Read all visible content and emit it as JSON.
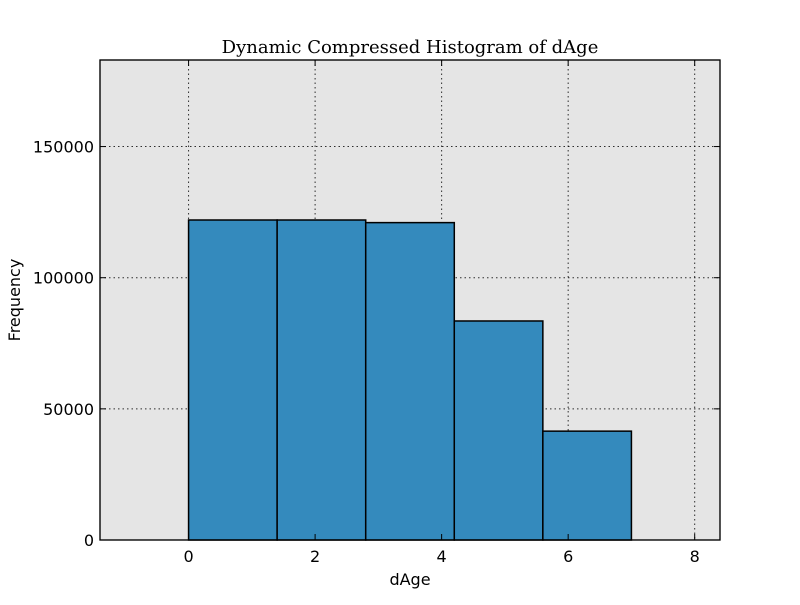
{
  "chart_data": {
    "type": "bar",
    "title": "Dynamic Compressed Histogram of dAge",
    "xlabel": "dAge",
    "ylabel": "Frequency",
    "xlim": [
      -1.4,
      8.4
    ],
    "ylim": [
      0,
      183000
    ],
    "x_ticks": [
      0,
      2,
      4,
      6,
      8
    ],
    "y_ticks": [
      0,
      50000,
      100000,
      150000
    ],
    "grid": true,
    "bins": [
      {
        "start": 0.0,
        "end": 1.4,
        "value": 122000
      },
      {
        "start": 1.4,
        "end": 2.8,
        "value": 122000
      },
      {
        "start": 2.8,
        "end": 4.2,
        "value": 121000
      },
      {
        "start": 4.2,
        "end": 5.6,
        "value": 83500
      },
      {
        "start": 5.6,
        "end": 7.0,
        "value": 41500
      }
    ],
    "colors": {
      "bar": "#348abd",
      "background": "#e5e5e5"
    }
  }
}
